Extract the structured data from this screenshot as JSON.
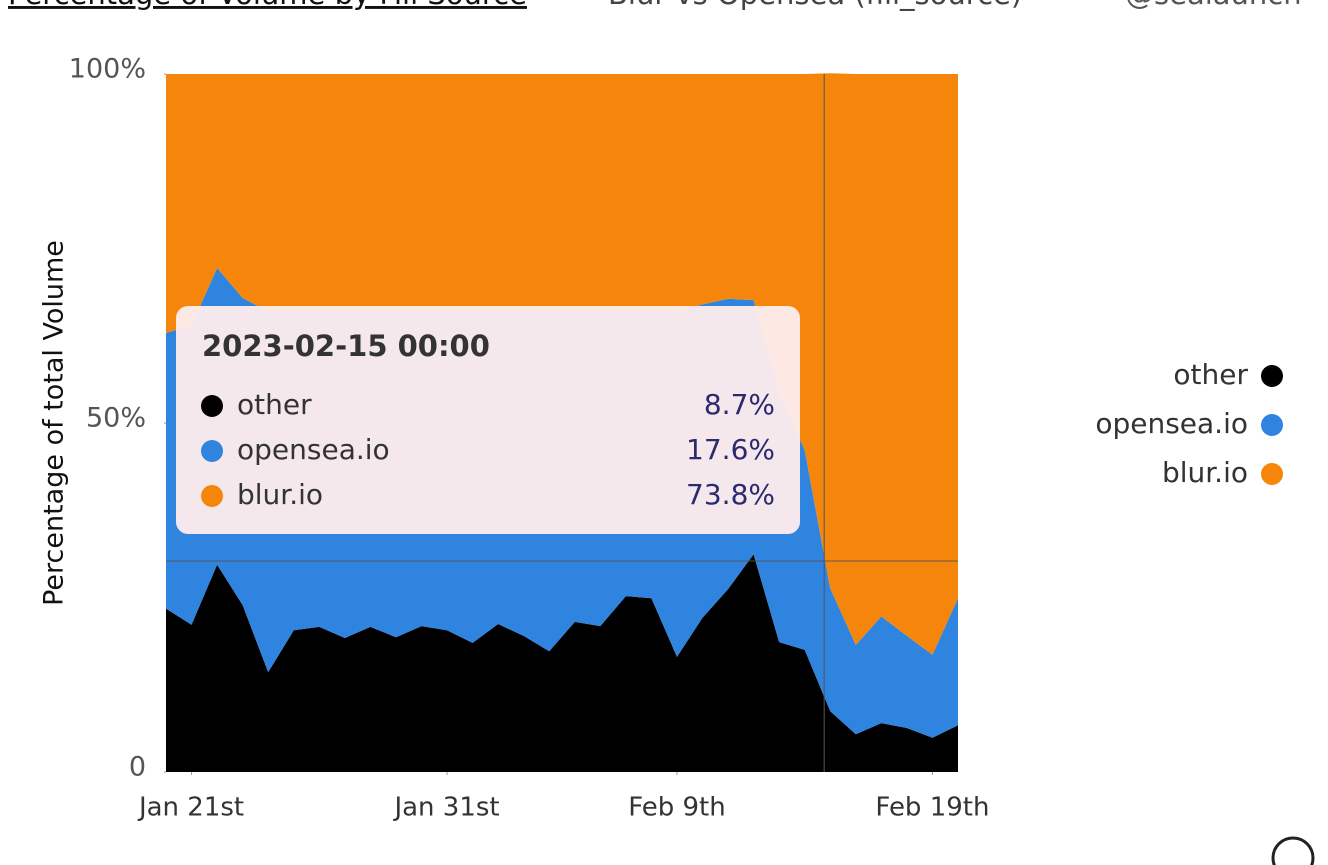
{
  "chart_data": {
    "type": "stacked_area",
    "title": "Percentage of Volume by Fill Source",
    "subtitle": "Blur vs Opensea (fill_source)",
    "author": "@sealaunch",
    "y_label": "Percentage of total Volume",
    "x": [
      "2023-01-20",
      "2023-01-21",
      "2023-01-22",
      "2023-01-23",
      "2023-01-24",
      "2023-01-25",
      "2023-01-26",
      "2023-01-27",
      "2023-01-28",
      "2023-01-29",
      "2023-01-30",
      "2023-01-31",
      "2023-02-01",
      "2023-02-02",
      "2023-02-03",
      "2023-02-04",
      "2023-02-05",
      "2023-02-06",
      "2023-02-07",
      "2023-02-08",
      "2023-02-09",
      "2023-02-10",
      "2023-02-11",
      "2023-02-12",
      "2023-02-13",
      "2023-02-14",
      "2023-02-15",
      "2023-02-16",
      "2023-02-17",
      "2023-02-18",
      "2023-02-19",
      "2023-02-20"
    ],
    "xticks": [
      {
        "value": "2023-01-21",
        "label": "Jan 21st"
      },
      {
        "value": "2023-01-31",
        "label": "Jan 31st"
      },
      {
        "value": "2023-02-09",
        "label": "Feb 9th"
      },
      {
        "value": "2023-02-19",
        "label": "Feb 19th"
      }
    ],
    "ylim": [
      0,
      100
    ],
    "yticks": [
      0,
      {
        "value": 50,
        "label": "50%"
      },
      {
        "value": 100,
        "label": "100%"
      }
    ],
    "series": [
      {
        "name": "other",
        "color": "#000000",
        "values": [
          23.4,
          21.1,
          29.7,
          23.9,
          14.3,
          20.3,
          20.8,
          19.2,
          20.8,
          19.3,
          20.9,
          20.3,
          18.5,
          21.2,
          19.5,
          17.3,
          21.5,
          20.9,
          25.2,
          24.9,
          16.5,
          22.1,
          26.2,
          31.2,
          18.6,
          17.5,
          8.7,
          5.4,
          7.0,
          6.3,
          4.9,
          6.7
        ]
      },
      {
        "name": "opensea.io",
        "color": "#2f84e0",
        "values": [
          39.5,
          42.9,
          42.5,
          44.0,
          51.7,
          45.7,
          45.2,
          46.8,
          45.2,
          46.7,
          45.1,
          45.7,
          47.5,
          44.8,
          46.5,
          48.7,
          44.5,
          45.1,
          40.8,
          41.1,
          49.5,
          44.9,
          41.6,
          36.4,
          35.7,
          28.6,
          17.6,
          12.8,
          15.3,
          13.2,
          11.9,
          18.2
        ]
      },
      {
        "name": "blur.io",
        "color": "#f5860b",
        "values": [
          37.1,
          36.0,
          27.8,
          32.1,
          34.0,
          34.0,
          34.0,
          34.0,
          34.0,
          34.0,
          34.0,
          34.0,
          34.0,
          34.0,
          34.0,
          34.0,
          34.0,
          34.0,
          34.0,
          34.0,
          34.0,
          33.0,
          32.2,
          32.4,
          45.7,
          53.9,
          73.8,
          81.8,
          77.7,
          80.5,
          83.2,
          75.1
        ]
      }
    ],
    "legend": "right",
    "tooltip": {
      "title": "2023-02-15 00:00",
      "x": "2023-02-15",
      "values": [
        "8.7%",
        "17.6%",
        "73.8%"
      ]
    }
  }
}
